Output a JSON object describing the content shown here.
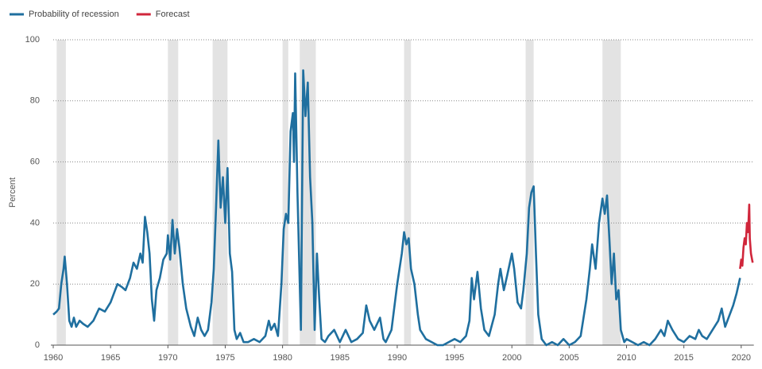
{
  "chart_data": {
    "type": "line",
    "y_label": "Percent",
    "xlim": [
      1960,
      2021.1
    ],
    "ylim": [
      0,
      100
    ],
    "xticks": [
      1960,
      1965,
      1970,
      1975,
      1980,
      1985,
      1990,
      1995,
      2000,
      2005,
      2010,
      2015,
      2020
    ],
    "yticks": [
      0,
      20,
      40,
      60,
      80,
      100
    ],
    "grid": true,
    "shaded_ranges": [
      [
        1960.3,
        1961.1
      ],
      [
        1970.0,
        1970.9
      ],
      [
        1973.9,
        1975.2
      ],
      [
        1980.0,
        1980.5
      ],
      [
        1981.5,
        1982.9
      ],
      [
        1990.6,
        1991.2
      ],
      [
        2001.2,
        2001.9
      ],
      [
        2007.9,
        2009.5
      ]
    ],
    "shade_color": "#e3e3e3",
    "series": [
      {
        "name": "Probability of recession",
        "color": "#1f6f9f",
        "x": [
          1960.0,
          1960.3,
          1960.5,
          1960.7,
          1960.9,
          1961.0,
          1961.2,
          1961.4,
          1961.6,
          1961.8,
          1962.0,
          1962.3,
          1962.6,
          1963.0,
          1963.5,
          1964.0,
          1964.5,
          1965.0,
          1965.3,
          1965.6,
          1966.0,
          1966.3,
          1966.7,
          1967.0,
          1967.3,
          1967.6,
          1967.8,
          1968.0,
          1968.2,
          1968.4,
          1968.6,
          1968.8,
          1969.0,
          1969.3,
          1969.6,
          1969.9,
          1970.0,
          1970.2,
          1970.4,
          1970.6,
          1970.8,
          1971.0,
          1971.3,
          1971.6,
          1972.0,
          1972.3,
          1972.6,
          1972.9,
          1973.2,
          1973.5,
          1973.8,
          1974.0,
          1974.2,
          1974.4,
          1974.6,
          1974.8,
          1975.0,
          1975.2,
          1975.4,
          1975.6,
          1975.8,
          1976.0,
          1976.3,
          1976.6,
          1977.0,
          1977.5,
          1978.0,
          1978.5,
          1978.8,
          1979.0,
          1979.3,
          1979.6,
          1979.9,
          1980.1,
          1980.3,
          1980.5,
          1980.7,
          1980.9,
          1981.0,
          1981.1,
          1981.3,
          1981.5,
          1981.6,
          1981.8,
          1982.0,
          1982.2,
          1982.4,
          1982.6,
          1982.8,
          1983.0,
          1983.2,
          1983.4,
          1983.7,
          1984.0,
          1984.5,
          1985.0,
          1985.5,
          1986.0,
          1986.5,
          1987.0,
          1987.3,
          1987.6,
          1988.0,
          1988.5,
          1988.8,
          1989.0,
          1989.5,
          1990.0,
          1990.4,
          1990.6,
          1990.8,
          1991.0,
          1991.2,
          1991.5,
          1991.8,
          1992.0,
          1992.5,
          1993.0,
          1993.5,
          1994.0,
          1994.5,
          1995.0,
          1995.5,
          1996.0,
          1996.3,
          1996.5,
          1996.7,
          1997.0,
          1997.3,
          1997.6,
          1998.0,
          1998.5,
          1998.8,
          1999.0,
          1999.3,
          1999.6,
          2000.0,
          2000.2,
          2000.5,
          2000.8,
          2001.0,
          2001.3,
          2001.5,
          2001.7,
          2001.9,
          2002.1,
          2002.3,
          2002.6,
          2003.0,
          2003.5,
          2004.0,
          2004.5,
          2005.0,
          2005.5,
          2006.0,
          2006.5,
          2006.8,
          2007.0,
          2007.3,
          2007.6,
          2007.9,
          2008.1,
          2008.3,
          2008.5,
          2008.7,
          2008.9,
          2009.1,
          2009.3,
          2009.5,
          2009.8,
          2010.0,
          2010.5,
          2011.0,
          2011.5,
          2012.0,
          2012.5,
          2013.0,
          2013.3,
          2013.6,
          2014.0,
          2014.5,
          2015.0,
          2015.5,
          2016.0,
          2016.3,
          2016.6,
          2017.0,
          2017.5,
          2018.0,
          2018.3,
          2018.6,
          2019.0,
          2019.3,
          2019.6,
          2019.9
        ],
        "values": [
          10,
          11,
          12,
          20,
          25,
          29,
          20,
          8,
          6,
          9,
          6,
          8,
          7,
          6,
          8,
          12,
          11,
          14,
          17,
          20,
          19,
          18,
          22,
          27,
          25,
          30,
          27,
          42,
          37,
          30,
          15,
          8,
          18,
          22,
          28,
          30,
          36,
          28,
          41,
          30,
          38,
          32,
          20,
          12,
          6,
          3,
          9,
          5,
          3,
          5,
          14,
          25,
          45,
          67,
          45,
          55,
          40,
          58,
          30,
          24,
          5,
          2,
          4,
          1,
          1,
          2,
          1,
          3,
          8,
          5,
          7,
          3,
          20,
          38,
          43,
          40,
          70,
          76,
          60,
          89,
          50,
          20,
          5,
          90,
          75,
          86,
          55,
          40,
          5,
          30,
          15,
          2,
          1,
          3,
          5,
          1,
          5,
          1,
          2,
          4,
          13,
          8,
          5,
          9,
          2,
          1,
          5,
          20,
          30,
          37,
          33,
          35,
          25,
          20,
          10,
          5,
          2,
          1,
          0,
          0,
          1,
          2,
          1,
          3,
          8,
          22,
          15,
          24,
          12,
          5,
          3,
          10,
          20,
          25,
          18,
          23,
          30,
          25,
          14,
          12,
          18,
          30,
          45,
          50,
          52,
          30,
          10,
          2,
          0,
          1,
          0,
          2,
          0,
          1,
          3,
          15,
          25,
          33,
          25,
          40,
          48,
          43,
          49,
          35,
          20,
          30,
          15,
          18,
          5,
          1,
          2,
          1,
          0,
          1,
          0,
          2,
          5,
          3,
          8,
          5,
          2,
          1,
          3,
          2,
          5,
          3,
          2,
          5,
          8,
          12,
          6,
          10,
          13,
          17,
          22
        ]
      },
      {
        "name": "Forecast",
        "color": "#d0263b",
        "x": [
          2019.9,
          2020.0,
          2020.1,
          2020.2,
          2020.3,
          2020.4,
          2020.5,
          2020.6,
          2020.7,
          2020.75,
          2020.85,
          2020.95,
          2021.0
        ],
        "values": [
          25,
          28,
          26,
          32,
          35,
          33,
          40,
          37,
          46,
          35,
          30,
          28,
          27
        ]
      }
    ]
  }
}
